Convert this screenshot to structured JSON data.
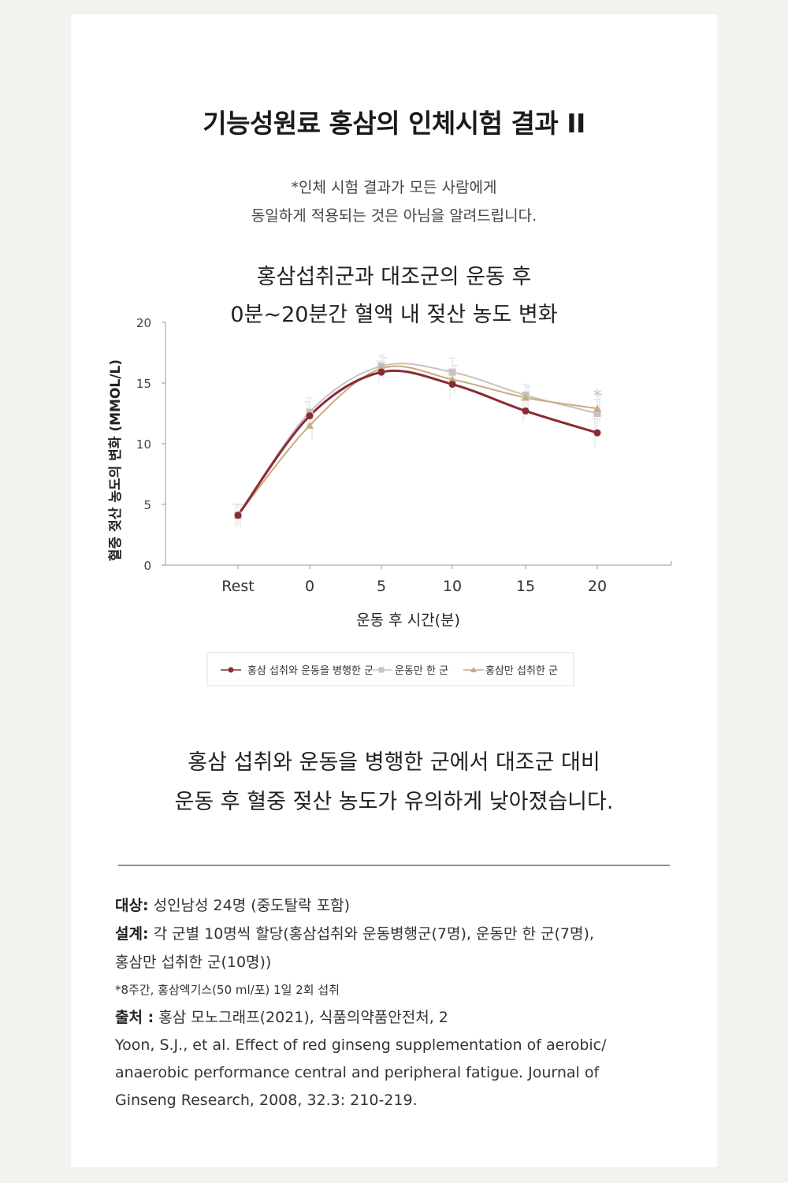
{
  "header": {
    "title": "기능성원료 홍삼의 인체시험 결과 II",
    "notice_line1": "*인체 시험 결과가 모든 사람에게",
    "notice_line2": "동일하게 적용되는 것은 아님을 알려드립니다."
  },
  "chart_data": {
    "type": "line",
    "title_line1": "홍삼섭취군과 대조군의 운동 후",
    "title_line2": "0분~20분간 혈액 내 젖산 농도 변화",
    "xlabel": "운동 후 시간(분)",
    "ylabel": "혈중 젖산 농도의 변화 (MMOL/L)",
    "categories": [
      "Rest",
      "0",
      "5",
      "10",
      "15",
      "20"
    ],
    "ylim": [
      0,
      20
    ],
    "yticks": [
      "0",
      "5",
      "10",
      "15",
      "20"
    ],
    "grid": false,
    "legend_position": "bottom",
    "significance_marker": "*",
    "series": [
      {
        "name": "홍삼 섭취와 운동을 병행한 군",
        "color": "#8b2a36",
        "marker": "circle",
        "values": [
          4.1,
          12.3,
          15.9,
          14.9,
          12.7,
          10.9
        ]
      },
      {
        "name": "운동만 한 군",
        "color": "#c8c2c2",
        "marker": "square",
        "values": [
          4.1,
          12.6,
          16.4,
          15.9,
          14.0,
          12.5
        ]
      },
      {
        "name": "홍삼만 섭취한 군",
        "color": "#c8ad7f",
        "marker": "triangle",
        "values": [
          4.1,
          11.5,
          16.2,
          15.3,
          13.8,
          12.9
        ]
      }
    ]
  },
  "summary": {
    "line1": "홍삼 섭취와 운동을 병행한 군에서 대조군 대비",
    "line2": "운동 후 혈중 젖산 농도가 유의하게 낮아졌습니다."
  },
  "details": {
    "subject_label": "대상:",
    "subject_text": " 성인남성 24명 (중도탈락 포함)",
    "design_label": "설계:",
    "design_text": " 각 군별 10명씩 할당(홍삼섭취와 운동병행군(7명), 운동만 한 군(7명),",
    "design_text2": "홍삼만 섭취한 군(10명))",
    "note": "*8주간, 홍삼엑기스(50 ml/포) 1일 2회 섭취",
    "source_label": "출처 :",
    "source_text": " 홍삼 모노그래프(2021), 식품의약품안전처, 2",
    "citation_line1": "Yoon, S.J., et al. Effect of red ginseng supplementation of aerobic/",
    "citation_line2": "anaerobic performance central and peripheral fatigue. Journal of",
    "citation_line3": "Ginseng Research, 2008, 32.3: 210-219."
  }
}
